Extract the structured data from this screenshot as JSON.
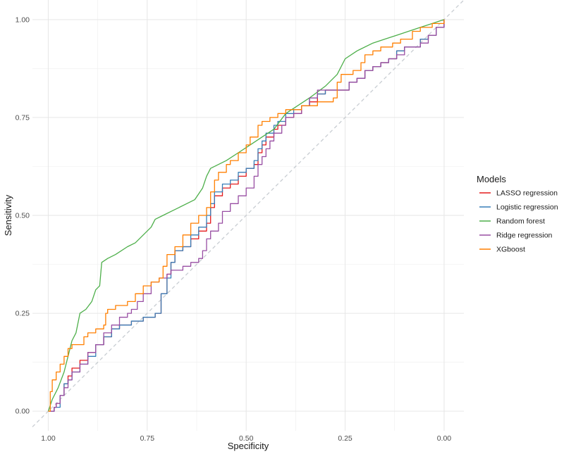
{
  "chart_data": {
    "type": "line",
    "xlabel": "Specificity",
    "ylabel": "Sensitivity",
    "xlim": [
      1.04,
      -0.05
    ],
    "ylim": [
      -0.05,
      1.05
    ],
    "x_reversed": true,
    "grid": true,
    "legend_position": "right",
    "x_ticks": [
      {
        "value": 1.0,
        "label": "1.00"
      },
      {
        "value": 0.75,
        "label": "0.75"
      },
      {
        "value": 0.5,
        "label": "0.50"
      },
      {
        "value": 0.25,
        "label": "0.25"
      },
      {
        "value": 0.0,
        "label": "0.00"
      }
    ],
    "y_ticks": [
      {
        "value": 0.0,
        "label": "0.00"
      },
      {
        "value": 0.25,
        "label": "0.25"
      },
      {
        "value": 0.5,
        "label": "0.50"
      },
      {
        "value": 0.75,
        "label": "0.75"
      },
      {
        "value": 1.0,
        "label": "1.00"
      }
    ],
    "reference_line": {
      "from": [
        1.04,
        -0.04
      ],
      "to": [
        -0.05,
        1.05
      ],
      "color": "#c8cdd2"
    },
    "legend_title": "Models",
    "series": [
      {
        "name": "LASSO regression",
        "color": "#E41A1C",
        "style": "step",
        "points": [
          [
            1.0,
            0.0
          ],
          [
            0.99,
            0.0
          ],
          [
            0.985,
            0.01
          ],
          [
            0.98,
            0.02
          ],
          [
            0.97,
            0.04
          ],
          [
            0.96,
            0.07
          ],
          [
            0.95,
            0.09
          ],
          [
            0.94,
            0.11
          ],
          [
            0.92,
            0.13
          ],
          [
            0.9,
            0.15
          ],
          [
            0.88,
            0.17
          ],
          [
            0.86,
            0.19
          ],
          [
            0.84,
            0.21
          ],
          [
            0.82,
            0.22
          ],
          [
            0.79,
            0.23
          ],
          [
            0.76,
            0.24
          ],
          [
            0.73,
            0.25
          ],
          [
            0.715,
            0.3
          ],
          [
            0.7,
            0.35
          ],
          [
            0.69,
            0.38
          ],
          [
            0.68,
            0.41
          ],
          [
            0.66,
            0.42
          ],
          [
            0.64,
            0.44
          ],
          [
            0.62,
            0.46
          ],
          [
            0.6,
            0.48
          ],
          [
            0.59,
            0.52
          ],
          [
            0.58,
            0.55
          ],
          [
            0.56,
            0.57
          ],
          [
            0.54,
            0.58
          ],
          [
            0.52,
            0.6
          ],
          [
            0.5,
            0.62
          ],
          [
            0.48,
            0.63
          ],
          [
            0.47,
            0.66
          ],
          [
            0.46,
            0.68
          ],
          [
            0.45,
            0.7
          ],
          [
            0.43,
            0.72
          ],
          [
            0.42,
            0.73
          ],
          [
            0.4,
            0.75
          ],
          [
            0.38,
            0.76
          ],
          [
            0.36,
            0.78
          ],
          [
            0.34,
            0.79
          ],
          [
            0.32,
            0.81
          ],
          [
            0.3,
            0.82
          ],
          [
            0.26,
            0.82
          ],
          [
            0.24,
            0.84
          ],
          [
            0.22,
            0.85
          ],
          [
            0.2,
            0.87
          ],
          [
            0.18,
            0.88
          ],
          [
            0.16,
            0.89
          ],
          [
            0.14,
            0.9
          ],
          [
            0.12,
            0.92
          ],
          [
            0.1,
            0.93
          ],
          [
            0.06,
            0.95
          ],
          [
            0.04,
            0.96
          ],
          [
            0.02,
            0.98
          ],
          [
            0.0,
            1.0
          ]
        ]
      },
      {
        "name": "Logistic regression",
        "color": "#377EB8",
        "style": "step",
        "points": [
          [
            1.0,
            0.0
          ],
          [
            0.99,
            0.0
          ],
          [
            0.985,
            0.01
          ],
          [
            0.97,
            0.04
          ],
          [
            0.96,
            0.07
          ],
          [
            0.95,
            0.08
          ],
          [
            0.94,
            0.1
          ],
          [
            0.92,
            0.12
          ],
          [
            0.9,
            0.14
          ],
          [
            0.88,
            0.17
          ],
          [
            0.86,
            0.19
          ],
          [
            0.84,
            0.21
          ],
          [
            0.82,
            0.22
          ],
          [
            0.79,
            0.23
          ],
          [
            0.76,
            0.24
          ],
          [
            0.73,
            0.25
          ],
          [
            0.715,
            0.3
          ],
          [
            0.7,
            0.34
          ],
          [
            0.69,
            0.38
          ],
          [
            0.68,
            0.41
          ],
          [
            0.66,
            0.42
          ],
          [
            0.64,
            0.45
          ],
          [
            0.62,
            0.47
          ],
          [
            0.6,
            0.5
          ],
          [
            0.59,
            0.53
          ],
          [
            0.58,
            0.56
          ],
          [
            0.56,
            0.58
          ],
          [
            0.54,
            0.59
          ],
          [
            0.52,
            0.61
          ],
          [
            0.5,
            0.62
          ],
          [
            0.48,
            0.64
          ],
          [
            0.47,
            0.67
          ],
          [
            0.46,
            0.69
          ],
          [
            0.45,
            0.71
          ],
          [
            0.43,
            0.73
          ],
          [
            0.42,
            0.74
          ],
          [
            0.4,
            0.76
          ],
          [
            0.38,
            0.77
          ],
          [
            0.36,
            0.78
          ],
          [
            0.34,
            0.8
          ],
          [
            0.32,
            0.81
          ],
          [
            0.3,
            0.82
          ],
          [
            0.26,
            0.82
          ],
          [
            0.24,
            0.84
          ],
          [
            0.22,
            0.85
          ],
          [
            0.2,
            0.87
          ],
          [
            0.18,
            0.88
          ],
          [
            0.16,
            0.89
          ],
          [
            0.14,
            0.9
          ],
          [
            0.12,
            0.92
          ],
          [
            0.1,
            0.93
          ],
          [
            0.06,
            0.95
          ],
          [
            0.04,
            0.96
          ],
          [
            0.02,
            0.98
          ],
          [
            0.0,
            1.0
          ]
        ]
      },
      {
        "name": "Random forest",
        "color": "#4DAF4A",
        "style": "line",
        "points": [
          [
            1.0,
            0.0
          ],
          [
            0.99,
            0.03
          ],
          [
            0.975,
            0.06
          ],
          [
            0.96,
            0.1
          ],
          [
            0.95,
            0.14
          ],
          [
            0.94,
            0.18
          ],
          [
            0.93,
            0.2
          ],
          [
            0.92,
            0.25
          ],
          [
            0.905,
            0.26
          ],
          [
            0.89,
            0.28
          ],
          [
            0.88,
            0.31
          ],
          [
            0.87,
            0.32
          ],
          [
            0.865,
            0.38
          ],
          [
            0.85,
            0.39
          ],
          [
            0.83,
            0.4
          ],
          [
            0.8,
            0.42
          ],
          [
            0.78,
            0.43
          ],
          [
            0.76,
            0.45
          ],
          [
            0.74,
            0.47
          ],
          [
            0.73,
            0.49
          ],
          [
            0.71,
            0.5
          ],
          [
            0.69,
            0.51
          ],
          [
            0.67,
            0.52
          ],
          [
            0.63,
            0.54
          ],
          [
            0.61,
            0.57
          ],
          [
            0.6,
            0.6
          ],
          [
            0.59,
            0.62
          ],
          [
            0.55,
            0.64
          ],
          [
            0.52,
            0.66
          ],
          [
            0.49,
            0.68
          ],
          [
            0.46,
            0.7
          ],
          [
            0.43,
            0.72
          ],
          [
            0.4,
            0.76
          ],
          [
            0.37,
            0.78
          ],
          [
            0.34,
            0.8
          ],
          [
            0.3,
            0.83
          ],
          [
            0.27,
            0.86
          ],
          [
            0.25,
            0.9
          ],
          [
            0.22,
            0.92
          ],
          [
            0.18,
            0.94
          ],
          [
            0.15,
            0.95
          ],
          [
            0.12,
            0.96
          ],
          [
            0.09,
            0.97
          ],
          [
            0.06,
            0.98
          ],
          [
            0.03,
            0.99
          ],
          [
            0.0,
            1.0
          ]
        ]
      },
      {
        "name": "Ridge regression",
        "color": "#984EA3",
        "style": "step",
        "points": [
          [
            1.0,
            0.0
          ],
          [
            0.99,
            0.0
          ],
          [
            0.985,
            0.01
          ],
          [
            0.98,
            0.02
          ],
          [
            0.97,
            0.04
          ],
          [
            0.96,
            0.06
          ],
          [
            0.95,
            0.08
          ],
          [
            0.94,
            0.1
          ],
          [
            0.92,
            0.12
          ],
          [
            0.9,
            0.15
          ],
          [
            0.88,
            0.17
          ],
          [
            0.86,
            0.2
          ],
          [
            0.84,
            0.22
          ],
          [
            0.82,
            0.24
          ],
          [
            0.8,
            0.25
          ],
          [
            0.79,
            0.26
          ],
          [
            0.775,
            0.28
          ],
          [
            0.76,
            0.3
          ],
          [
            0.74,
            0.33
          ],
          [
            0.72,
            0.34
          ],
          [
            0.7,
            0.35
          ],
          [
            0.69,
            0.36
          ],
          [
            0.66,
            0.37
          ],
          [
            0.64,
            0.38
          ],
          [
            0.62,
            0.39
          ],
          [
            0.61,
            0.41
          ],
          [
            0.6,
            0.44
          ],
          [
            0.59,
            0.46
          ],
          [
            0.57,
            0.48
          ],
          [
            0.56,
            0.51
          ],
          [
            0.54,
            0.53
          ],
          [
            0.52,
            0.55
          ],
          [
            0.5,
            0.57
          ],
          [
            0.48,
            0.6
          ],
          [
            0.47,
            0.63
          ],
          [
            0.46,
            0.65
          ],
          [
            0.45,
            0.67
          ],
          [
            0.44,
            0.69
          ],
          [
            0.43,
            0.71
          ],
          [
            0.41,
            0.73
          ],
          [
            0.4,
            0.75
          ],
          [
            0.38,
            0.76
          ],
          [
            0.36,
            0.78
          ],
          [
            0.34,
            0.8
          ],
          [
            0.32,
            0.82
          ],
          [
            0.3,
            0.82
          ],
          [
            0.26,
            0.82
          ],
          [
            0.24,
            0.84
          ],
          [
            0.22,
            0.85
          ],
          [
            0.2,
            0.87
          ],
          [
            0.18,
            0.88
          ],
          [
            0.16,
            0.89
          ],
          [
            0.14,
            0.9
          ],
          [
            0.12,
            0.91
          ],
          [
            0.1,
            0.93
          ],
          [
            0.06,
            0.94
          ],
          [
            0.04,
            0.96
          ],
          [
            0.02,
            0.98
          ],
          [
            0.0,
            1.0
          ]
        ]
      },
      {
        "name": "XGboost",
        "color": "#FF7F00",
        "style": "step",
        "points": [
          [
            1.0,
            0.0
          ],
          [
            0.995,
            0.05
          ],
          [
            0.99,
            0.08
          ],
          [
            0.98,
            0.1
          ],
          [
            0.97,
            0.12
          ],
          [
            0.96,
            0.14
          ],
          [
            0.95,
            0.16
          ],
          [
            0.94,
            0.17
          ],
          [
            0.92,
            0.17
          ],
          [
            0.91,
            0.19
          ],
          [
            0.9,
            0.2
          ],
          [
            0.88,
            0.21
          ],
          [
            0.86,
            0.22
          ],
          [
            0.855,
            0.25
          ],
          [
            0.85,
            0.26
          ],
          [
            0.83,
            0.27
          ],
          [
            0.8,
            0.28
          ],
          [
            0.78,
            0.3
          ],
          [
            0.76,
            0.32
          ],
          [
            0.74,
            0.33
          ],
          [
            0.72,
            0.34
          ],
          [
            0.71,
            0.37
          ],
          [
            0.7,
            0.4
          ],
          [
            0.68,
            0.42
          ],
          [
            0.66,
            0.45
          ],
          [
            0.64,
            0.48
          ],
          [
            0.62,
            0.5
          ],
          [
            0.6,
            0.52
          ],
          [
            0.59,
            0.56
          ],
          [
            0.58,
            0.59
          ],
          [
            0.57,
            0.61
          ],
          [
            0.55,
            0.63
          ],
          [
            0.54,
            0.64
          ],
          [
            0.52,
            0.66
          ],
          [
            0.5,
            0.68
          ],
          [
            0.49,
            0.7
          ],
          [
            0.47,
            0.73
          ],
          [
            0.46,
            0.74
          ],
          [
            0.44,
            0.75
          ],
          [
            0.42,
            0.76
          ],
          [
            0.4,
            0.77
          ],
          [
            0.38,
            0.77
          ],
          [
            0.36,
            0.78
          ],
          [
            0.34,
            0.78
          ],
          [
            0.32,
            0.79
          ],
          [
            0.3,
            0.79
          ],
          [
            0.28,
            0.8
          ],
          [
            0.27,
            0.84
          ],
          [
            0.26,
            0.86
          ],
          [
            0.23,
            0.87
          ],
          [
            0.21,
            0.89
          ],
          [
            0.2,
            0.91
          ],
          [
            0.18,
            0.92
          ],
          [
            0.16,
            0.93
          ],
          [
            0.13,
            0.94
          ],
          [
            0.11,
            0.95
          ],
          [
            0.08,
            0.97
          ],
          [
            0.06,
            0.98
          ],
          [
            0.03,
            0.99
          ],
          [
            0.0,
            1.0
          ]
        ]
      }
    ]
  }
}
